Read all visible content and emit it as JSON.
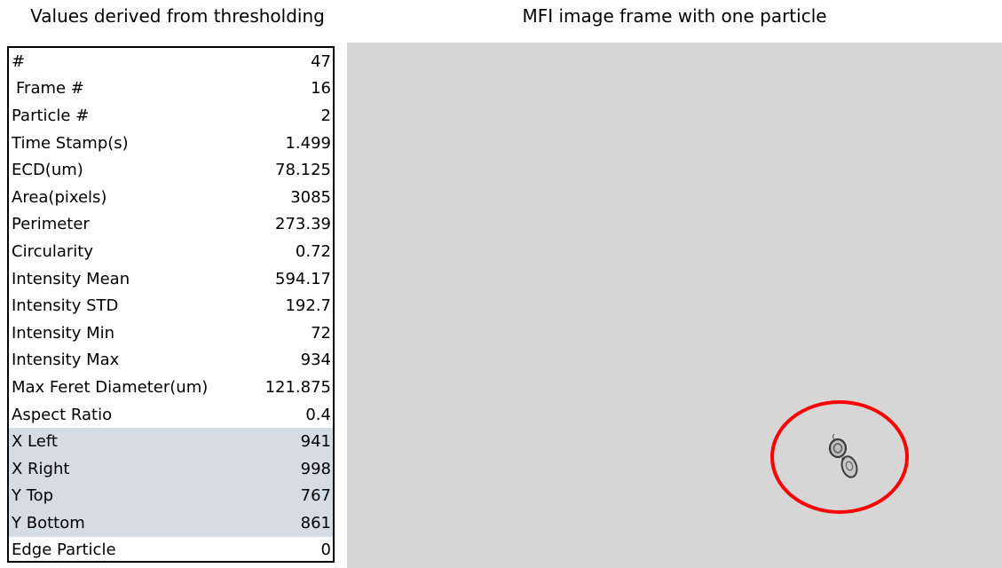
{
  "left_title": "Values derived from thresholding",
  "right_title": "MFI image frame with one particle",
  "rows": [
    {
      "label": "#",
      "value": "47"
    },
    {
      "label": "Frame #",
      "value": "16"
    },
    {
      "label": "Particle #",
      "value": "2"
    },
    {
      "label": "Time Stamp(s)",
      "value": "1.499"
    },
    {
      "label": "ECD(um)",
      "value": "78.125"
    },
    {
      "label": "Area(pixels)",
      "value": "3085"
    },
    {
      "label": "Perimeter",
      "value": "273.39"
    },
    {
      "label": "Circularity",
      "value": "0.72"
    },
    {
      "label": "Intensity Mean",
      "value": "594.17"
    },
    {
      "label": "Intensity STD",
      "value": "192.7"
    },
    {
      "label": "Intensity Min",
      "value": "72"
    },
    {
      "label": "Intensity Max",
      "value": "934"
    },
    {
      "label": "Max Feret Diameter(um)",
      "value": "121.875"
    },
    {
      "label": "Aspect Ratio",
      "value": "0.4"
    },
    {
      "label": "X Left",
      "value": "941"
    },
    {
      "label": "X Right",
      "value": "998"
    },
    {
      "label": "Y Top",
      "value": "767"
    },
    {
      "label": "Y Bottom",
      "value": "861"
    },
    {
      "label": "Edge Particle",
      "value": "0"
    }
  ],
  "colors": {
    "highlight_rows": "#d6dce4",
    "frame_background": "#d6d6d6",
    "circle": "#ff0000"
  }
}
